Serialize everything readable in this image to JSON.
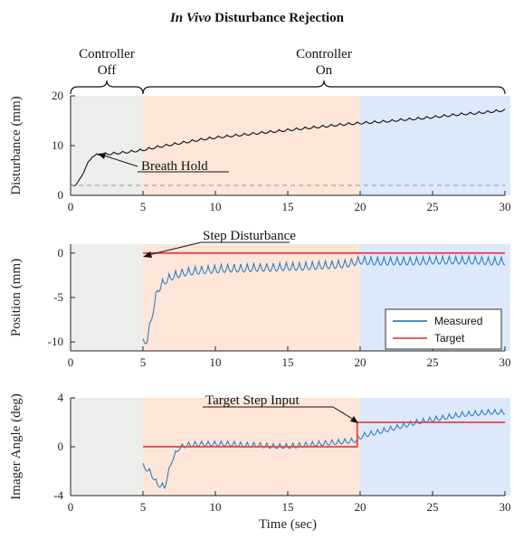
{
  "title_italic": "In Vivo",
  "title_rest": " Disturbance Rejection",
  "colors": {
    "off_region": "#eceeeb",
    "mid_region": "#fde6d8",
    "late_region": "#dde9fb",
    "measured": "#2d7fc4",
    "target": "#e8424a",
    "disturbance": "#111111",
    "baseline": "#999999"
  },
  "annotations": {
    "controller_off": [
      "Controller",
      "Off"
    ],
    "controller_on": [
      "Controller",
      "On"
    ],
    "breath_hold": "Breath Hold",
    "step_disturbance": "Step Disturbance",
    "target_step_input": "Target Step Input"
  },
  "chart_data": [
    {
      "type": "line",
      "ylabel": "Disturbance (mm)",
      "xlim": [
        0,
        30
      ],
      "ylim": [
        0,
        20
      ],
      "xticks": [
        0,
        5,
        10,
        15,
        20,
        25,
        30
      ],
      "yticks": [
        0,
        10,
        20
      ],
      "regions": [
        [
          0,
          5,
          "off"
        ],
        [
          5,
          20,
          "mid"
        ],
        [
          20,
          30.5,
          "late"
        ]
      ],
      "series": [
        {
          "color": "#111111",
          "style": "solid",
          "x": [
            0,
            0.3,
            0.6,
            1.0,
            1.5,
            2.0,
            2.5,
            3,
            4,
            5,
            6,
            7,
            8,
            9,
            10,
            11,
            12,
            13,
            14,
            15,
            16,
            17,
            18,
            19,
            20,
            21,
            22,
            23,
            24,
            25,
            26,
            27,
            28,
            29,
            30
          ],
          "y": [
            2.0,
            2.2,
            3.0,
            5.5,
            8.0,
            8.3,
            8.4,
            8.5,
            8.8,
            9.2,
            9.8,
            10.3,
            10.8,
            11.3,
            11.7,
            12.0,
            12.3,
            12.6,
            12.9,
            13.2,
            13.5,
            13.8,
            14.1,
            14.4,
            14.6,
            14.8,
            15.0,
            15.3,
            15.5,
            15.8,
            16.1,
            16.4,
            16.6,
            16.9,
            17.2
          ],
          "ripple_amplitude": 0.45,
          "ripple_period": 0.6
        },
        {
          "color": "#999999",
          "style": "dashed",
          "x": [
            0,
            30
          ],
          "y": [
            2,
            2
          ]
        }
      ]
    },
    {
      "type": "line",
      "ylabel": "Position (mm)",
      "xlim": [
        0,
        30
      ],
      "ylim": [
        -11,
        1
      ],
      "xticks": [
        0,
        5,
        10,
        15,
        20,
        25,
        30
      ],
      "yticks": [
        -10,
        -5,
        0
      ],
      "regions": [
        [
          0,
          5,
          "off"
        ],
        [
          5,
          20,
          "mid"
        ],
        [
          20,
          30.5,
          "late"
        ]
      ],
      "legend": [
        {
          "label": "Measured",
          "color": "#2d7fc4"
        },
        {
          "label": "Target",
          "color": "#e8424a"
        }
      ],
      "series": [
        {
          "name": "Measured",
          "color": "#2d7fc4",
          "style": "solid",
          "x": [
            5,
            5.3,
            5.6,
            6.0,
            6.5,
            7.0,
            7.5,
            8,
            9,
            10,
            11,
            12,
            13,
            14,
            15,
            16,
            17,
            18,
            19,
            20,
            21,
            22,
            23,
            24,
            25,
            26,
            27,
            28,
            29,
            30
          ],
          "y": [
            -10.0,
            -9.5,
            -7.0,
            -4.0,
            -3.0,
            -2.5,
            -2.2,
            -2.0,
            -1.8,
            -1.7,
            -1.6,
            -1.6,
            -1.5,
            -1.5,
            -1.4,
            -1.4,
            -1.3,
            -1.2,
            -1.1,
            -0.7,
            -0.8,
            -0.8,
            -0.8,
            -0.8,
            -0.7,
            -0.7,
            -0.7,
            -0.7,
            -0.8,
            -0.8
          ],
          "ripple_amplitude": 0.9,
          "ripple_period": 0.45
        },
        {
          "name": "Target",
          "color": "#e8424a",
          "style": "solid",
          "x": [
            5,
            30
          ],
          "y": [
            0,
            0
          ]
        }
      ]
    },
    {
      "type": "line",
      "ylabel": "Imager Angle (deg)",
      "xlabel": "Time (sec)",
      "xlim": [
        0,
        30
      ],
      "ylim": [
        -4,
        4
      ],
      "xticks": [
        0,
        5,
        10,
        15,
        20,
        25,
        30
      ],
      "yticks": [
        -4,
        0,
        4
      ],
      "regions": [
        [
          0,
          5,
          "off"
        ],
        [
          5,
          20,
          "mid"
        ],
        [
          20,
          30.5,
          "late"
        ]
      ],
      "series": [
        {
          "name": "Measured",
          "color": "#2d7fc4",
          "style": "solid",
          "x": [
            5,
            5.5,
            6.0,
            6.5,
            7.0,
            7.5,
            8,
            9,
            10,
            11,
            12,
            13,
            14,
            15,
            16,
            17,
            18,
            19,
            19.7,
            20.2,
            21,
            22,
            23,
            24,
            25,
            26,
            27,
            28,
            29,
            30
          ],
          "y": [
            -1.5,
            -2.0,
            -3.0,
            -3.2,
            -1.0,
            0.0,
            0.2,
            0.3,
            0.3,
            0.3,
            0.2,
            0.2,
            0.1,
            0.1,
            0.2,
            0.3,
            0.4,
            0.5,
            0.6,
            1.0,
            1.2,
            1.5,
            1.8,
            2.1,
            2.3,
            2.5,
            2.7,
            2.8,
            2.9,
            2.9
          ],
          "ripple_amplitude": 0.4,
          "ripple_period": 0.45
        },
        {
          "name": "Target",
          "color": "#e8424a",
          "style": "solid",
          "x": [
            5,
            19.8,
            19.8,
            30
          ],
          "y": [
            0,
            0,
            2,
            2
          ]
        }
      ]
    }
  ]
}
